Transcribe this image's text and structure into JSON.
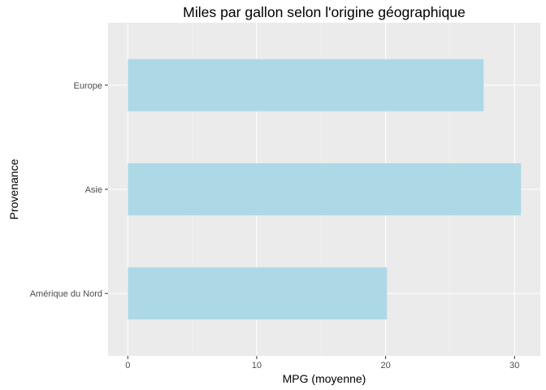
{
  "chart_data": {
    "type": "bar",
    "orientation": "horizontal",
    "title": "Miles par gallon selon l'origine géographique",
    "xlabel": "MPG (moyenne)",
    "ylabel": "Provenance",
    "categories": [
      "Amérique du Nord",
      "Asie",
      "Europe"
    ],
    "values": [
      20.1,
      30.5,
      27.6
    ],
    "xlim": [
      -1.53,
      32.0
    ],
    "x_ticks": [
      0,
      10,
      20,
      30
    ],
    "x_tick_labels": [
      "0",
      "10",
      "20",
      "30"
    ],
    "grid": true,
    "legend": "none",
    "colors": {
      "bar_fill": "#ADD8E6",
      "panel_background": "#EBEBEB",
      "grid_major": "#FFFFFF",
      "grid_minor": "#F5F5F5",
      "tick_text": "#4D4D4D",
      "tick_mark": "#333333"
    }
  }
}
